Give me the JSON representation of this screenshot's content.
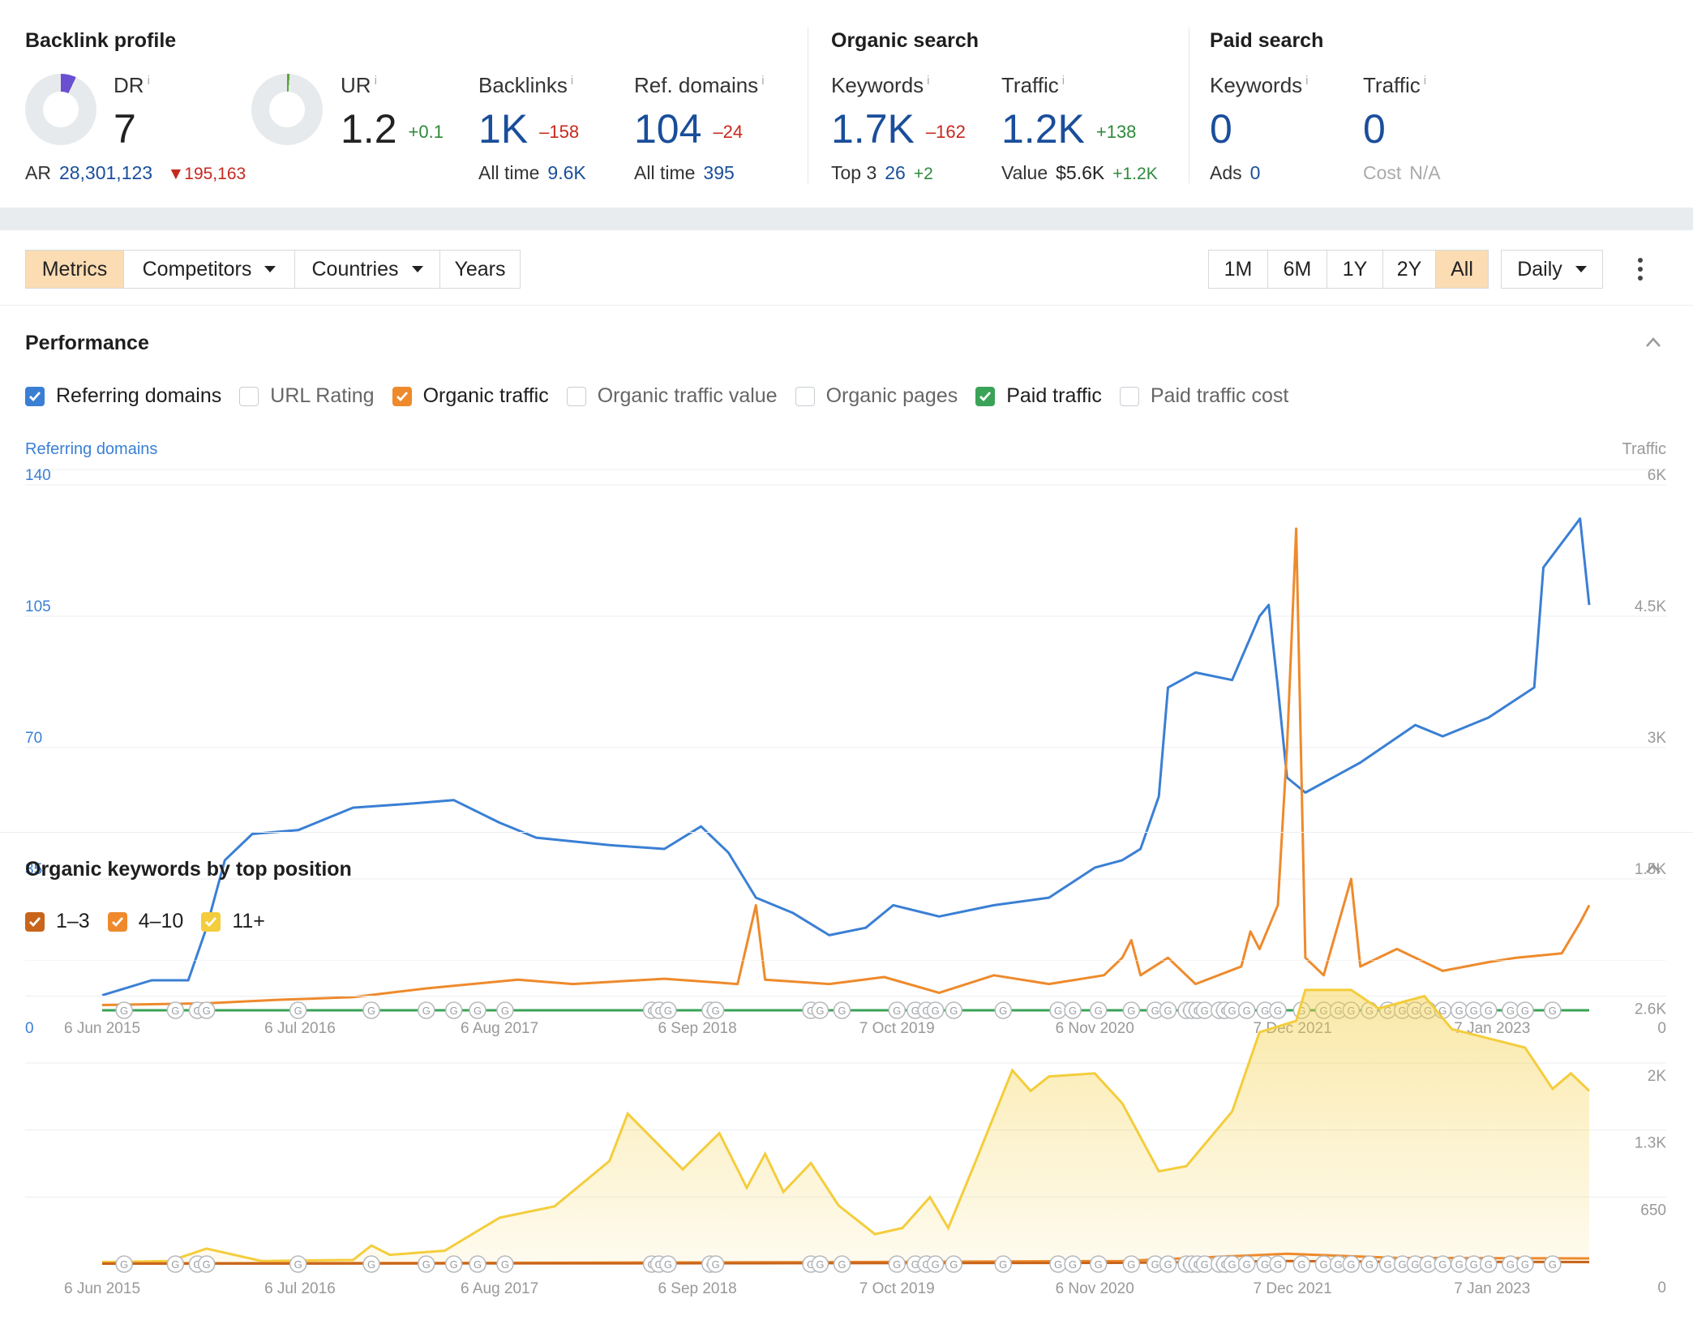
{
  "overview": {
    "backlink": {
      "title": "Backlink profile",
      "dr": {
        "label": "DR",
        "info": "i",
        "value": "7",
        "ring_fraction": 0.07
      },
      "ur": {
        "label": "UR",
        "info": "i",
        "value": "1.2",
        "delta": "+0.1",
        "ring_fraction": 0.012
      },
      "ar": {
        "label": "AR",
        "value": "28,301,123",
        "delta": "195,163"
      },
      "backlinks": {
        "label": "Backlinks",
        "info": "i",
        "value": "1K",
        "delta": "–158",
        "sub_label": "All time",
        "sub_value": "9.6K"
      },
      "ref_domains": {
        "label": "Ref. domains",
        "info": "i",
        "value": "104",
        "delta": "–24",
        "sub_label": "All time",
        "sub_value": "395"
      }
    },
    "organic": {
      "title": "Organic search",
      "keywords": {
        "label": "Keywords",
        "info": "i",
        "value": "1.7K",
        "delta": "–162",
        "sub_label": "Top 3",
        "sub_value": "26",
        "sub_delta": "+2"
      },
      "traffic": {
        "label": "Traffic",
        "info": "i",
        "value": "1.2K",
        "delta": "+138",
        "sub_label": "Value",
        "sub_value": "$5.6K",
        "sub_delta": "+1.2K"
      }
    },
    "paid": {
      "title": "Paid search",
      "keywords": {
        "label": "Keywords",
        "info": "i",
        "value": "0",
        "sub_label": "Ads",
        "sub_value": "0"
      },
      "traffic": {
        "label": "Traffic",
        "info": "i",
        "value": "0",
        "sub_label": "Cost",
        "sub_value": "N/A"
      }
    }
  },
  "toolbar": {
    "tabs": [
      "Metrics",
      "Competitors",
      "Countries",
      "Years"
    ],
    "active_tab": "Metrics",
    "ranges": [
      "1M",
      "6M",
      "1Y",
      "2Y",
      "All"
    ],
    "active_range": "All",
    "granularity": "Daily"
  },
  "performance": {
    "title": "Performance",
    "checkboxes": [
      {
        "label": "Referring domains",
        "checked": true,
        "color": "#3a7fd4"
      },
      {
        "label": "URL Rating",
        "checked": false,
        "color": "#c9cdd1"
      },
      {
        "label": "Organic traffic",
        "checked": true,
        "color": "#ee8a2c"
      },
      {
        "label": "Organic traffic value",
        "checked": false,
        "color": "#c9cdd1"
      },
      {
        "label": "Organic pages",
        "checked": false,
        "color": "#c9cdd1"
      },
      {
        "label": "Paid traffic",
        "checked": true,
        "color": "#3aa357"
      },
      {
        "label": "Paid traffic cost",
        "checked": false,
        "color": "#c9cdd1"
      }
    ],
    "left_axis_title": "Referring domains",
    "right_axis_title": "Traffic"
  },
  "keywords_panel": {
    "title": "Organic keywords by top position",
    "checkboxes": [
      {
        "label": "1–3",
        "checked": true,
        "color": "#c8651b"
      },
      {
        "label": "4–10",
        "checked": true,
        "color": "#ee8a2c"
      },
      {
        "label": "11+",
        "checked": true,
        "color": "#f4cd3c"
      }
    ]
  },
  "chart_data": [
    {
      "type": "line",
      "x_labels": [
        "6 Jun 2015",
        "6 Jul 2016",
        "6 Aug 2017",
        "6 Sep 2018",
        "7 Oct 2019",
        "6 Nov 2020",
        "7 Dec 2021",
        "7 Jan 2023"
      ],
      "y_left_ticks": [
        "0",
        "35",
        "70",
        "105",
        "140"
      ],
      "y_right_ticks": [
        "0",
        "1.5K",
        "3K",
        "4.5K",
        "6K"
      ],
      "ylim_left": [
        0,
        140
      ],
      "ylim_right": [
        0,
        6000
      ],
      "series": [
        {
          "name": "Referring domains",
          "axis": "left",
          "color": "#3a7fd4",
          "points": [
            [
              2015.43,
              4
            ],
            [
              2015.7,
              8
            ],
            [
              2015.9,
              8
            ],
            [
              2016.0,
              22
            ],
            [
              2016.1,
              40
            ],
            [
              2016.25,
              47
            ],
            [
              2016.5,
              48
            ],
            [
              2016.8,
              54
            ],
            [
              2017.1,
              55
            ],
            [
              2017.35,
              56
            ],
            [
              2017.6,
              50
            ],
            [
              2017.8,
              46
            ],
            [
              2018.2,
              44
            ],
            [
              2018.5,
              43
            ],
            [
              2018.7,
              49
            ],
            [
              2018.85,
              42
            ],
            [
              2019.0,
              30
            ],
            [
              2019.2,
              26
            ],
            [
              2019.4,
              20
            ],
            [
              2019.6,
              22
            ],
            [
              2019.75,
              28
            ],
            [
              2020.0,
              25
            ],
            [
              2020.3,
              28
            ],
            [
              2020.6,
              30
            ],
            [
              2020.85,
              38
            ],
            [
              2021.0,
              40
            ],
            [
              2021.1,
              43
            ],
            [
              2021.2,
              57
            ],
            [
              2021.25,
              86
            ],
            [
              2021.4,
              90
            ],
            [
              2021.6,
              88
            ],
            [
              2021.75,
              105
            ],
            [
              2021.8,
              108
            ],
            [
              2021.85,
              86
            ],
            [
              2021.9,
              62
            ],
            [
              2022.0,
              58
            ],
            [
              2022.3,
              66
            ],
            [
              2022.6,
              76
            ],
            [
              2022.75,
              73
            ],
            [
              2023.0,
              78
            ],
            [
              2023.25,
              86
            ],
            [
              2023.3,
              118
            ],
            [
              2023.5,
              131
            ],
            [
              2023.55,
              108
            ]
          ]
        },
        {
          "name": "Organic traffic",
          "axis": "right",
          "color": "#ee8a2c",
          "points": [
            [
              2015.43,
              60
            ],
            [
              2016.0,
              80
            ],
            [
              2016.4,
              120
            ],
            [
              2016.8,
              150
            ],
            [
              2017.2,
              250
            ],
            [
              2017.7,
              350
            ],
            [
              2018.0,
              300
            ],
            [
              2018.5,
              360
            ],
            [
              2018.9,
              300
            ],
            [
              2019.0,
              1200
            ],
            [
              2019.05,
              350
            ],
            [
              2019.4,
              300
            ],
            [
              2019.7,
              380
            ],
            [
              2020.0,
              200
            ],
            [
              2020.3,
              400
            ],
            [
              2020.6,
              300
            ],
            [
              2020.9,
              400
            ],
            [
              2021.0,
              600
            ],
            [
              2021.05,
              800
            ],
            [
              2021.1,
              400
            ],
            [
              2021.25,
              600
            ],
            [
              2021.4,
              300
            ],
            [
              2021.65,
              500
            ],
            [
              2021.7,
              900
            ],
            [
              2021.75,
              700
            ],
            [
              2021.85,
              1200
            ],
            [
              2021.9,
              3000
            ],
            [
              2021.95,
              5500
            ],
            [
              2022.0,
              600
            ],
            [
              2022.1,
              400
            ],
            [
              2022.25,
              1500
            ],
            [
              2022.3,
              500
            ],
            [
              2022.5,
              700
            ],
            [
              2022.75,
              450
            ],
            [
              2023.0,
              550
            ],
            [
              2023.15,
              600
            ],
            [
              2023.4,
              650
            ],
            [
              2023.5,
              1000
            ],
            [
              2023.55,
              1200
            ]
          ]
        },
        {
          "name": "Paid traffic",
          "axis": "right",
          "color": "#3aa357",
          "points": [
            [
              2015.43,
              0
            ],
            [
              2023.55,
              0
            ]
          ]
        }
      ]
    },
    {
      "type": "area",
      "x_labels": [
        "6 Jun 2015",
        "6 Jul 2016",
        "6 Aug 2017",
        "6 Sep 2018",
        "7 Oct 2019",
        "6 Nov 2020",
        "7 Dec 2021",
        "7 Jan 2023"
      ],
      "y_right_ticks": [
        "650",
        "1.3K",
        "2K",
        "2.6K"
      ],
      "ylim": [
        0,
        2950
      ],
      "series": [
        {
          "name": "11+",
          "color": "#f4cd3c",
          "points": [
            [
              2015.43,
              20
            ],
            [
              2015.8,
              30
            ],
            [
              2016.0,
              150
            ],
            [
              2016.3,
              30
            ],
            [
              2016.8,
              40
            ],
            [
              2016.9,
              180
            ],
            [
              2017.0,
              90
            ],
            [
              2017.3,
              130
            ],
            [
              2017.6,
              450
            ],
            [
              2017.9,
              560
            ],
            [
              2018.2,
              1000
            ],
            [
              2018.3,
              1460
            ],
            [
              2018.6,
              920
            ],
            [
              2018.8,
              1270
            ],
            [
              2018.95,
              740
            ],
            [
              2019.05,
              1070
            ],
            [
              2019.15,
              700
            ],
            [
              2019.3,
              980
            ],
            [
              2019.45,
              570
            ],
            [
              2019.65,
              290
            ],
            [
              2019.8,
              350
            ],
            [
              2019.95,
              650
            ],
            [
              2020.05,
              350
            ],
            [
              2020.2,
              1000
            ],
            [
              2020.4,
              1880
            ],
            [
              2020.5,
              1680
            ],
            [
              2020.6,
              1820
            ],
            [
              2020.85,
              1850
            ],
            [
              2021.0,
              1560
            ],
            [
              2021.2,
              900
            ],
            [
              2021.35,
              950
            ],
            [
              2021.6,
              1480
            ],
            [
              2021.75,
              2250
            ],
            [
              2021.95,
              2360
            ],
            [
              2022.0,
              2660
            ],
            [
              2022.25,
              2660
            ],
            [
              2022.4,
              2480
            ],
            [
              2022.65,
              2600
            ],
            [
              2022.8,
              2280
            ],
            [
              2023.2,
              2100
            ],
            [
              2023.35,
              1700
            ],
            [
              2023.45,
              1850
            ],
            [
              2023.55,
              1680
            ]
          ]
        },
        {
          "name": "4–10",
          "color": "#ee8a2c",
          "points": [
            [
              2015.43,
              8
            ],
            [
              2017.5,
              12
            ],
            [
              2019.5,
              20
            ],
            [
              2021.0,
              30
            ],
            [
              2021.9,
              100
            ],
            [
              2022.5,
              60
            ],
            [
              2023.55,
              55
            ]
          ]
        },
        {
          "name": "1–3",
          "color": "#c8651b",
          "points": [
            [
              2015.43,
              4
            ],
            [
              2019.0,
              8
            ],
            [
              2021.0,
              12
            ],
            [
              2021.9,
              30
            ],
            [
              2022.5,
              22
            ],
            [
              2023.55,
              20
            ]
          ]
        }
      ]
    }
  ]
}
